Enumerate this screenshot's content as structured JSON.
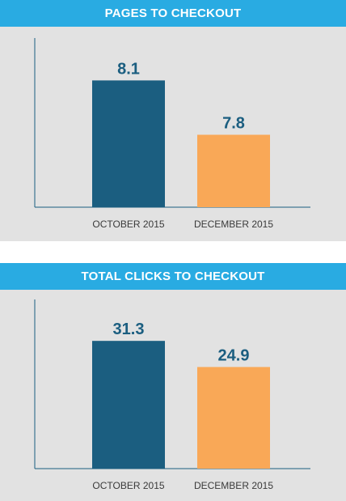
{
  "chart_data": [
    {
      "type": "bar",
      "title": "PAGES TO CHECKOUT",
      "categories": [
        "OCTOBER 2015",
        "DECEMBER 2015"
      ],
      "values": [
        8.1,
        7.8
      ],
      "value_labels": [
        "8.1",
        "7.8"
      ],
      "bar_colors": [
        "#1b5e80",
        "#f9a857"
      ],
      "ylim": [
        7.4,
        8.2
      ],
      "grid": false,
      "legend": "none"
    },
    {
      "type": "bar",
      "title": "TOTAL CLICKS TO CHECKOUT",
      "categories": [
        "OCTOBER 2015",
        "DECEMBER 2015"
      ],
      "values": [
        31.3,
        24.9
      ],
      "value_labels": [
        "31.3",
        "24.9"
      ],
      "bar_colors": [
        "#1b5e80",
        "#f9a857"
      ],
      "ylim": [
        0,
        35.5
      ],
      "grid": false,
      "legend": "none"
    }
  ],
  "colors": {
    "header_background": "#29abe2",
    "panel_background": "#e2e2e2",
    "axis": "#1b5e80",
    "value_label": "#1b5e80"
  }
}
